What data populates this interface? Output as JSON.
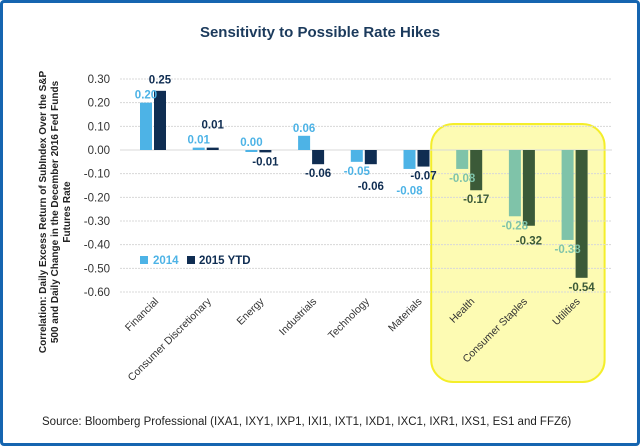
{
  "chart_data": {
    "type": "bar",
    "title": "Sensitivity to Possible Rate Hikes",
    "ylabel": [
      "Correlation: Daily Excess Return of SubIndex Over the S&P",
      "500 and Daily Change in the December 2016 Fed Funds",
      "Futures Rate"
    ],
    "ylim": [
      -0.6,
      0.3
    ],
    "yticks": [
      "0.30",
      "0.20",
      "0.10",
      "0.00",
      "-0.10",
      "-0.20",
      "-0.30",
      "-0.40",
      "-0.50",
      "-0.60"
    ],
    "grid": true,
    "legend_placement": "left-middle",
    "categories": [
      "Financial",
      "Consumer Discretionary",
      "Energy",
      "Industrials",
      "Technology",
      "Materials",
      "Health",
      "Consumer Staples",
      "Utilities"
    ],
    "series": [
      {
        "name": "2014",
        "values": [
          0.2,
          0.01,
          0.0,
          0.06,
          -0.05,
          -0.08,
          -0.08,
          -0.28,
          -0.38
        ],
        "labels": [
          "0.20",
          "0.01",
          "0.00",
          "0.06",
          "-0.05",
          "-0.08",
          "-0.08",
          "-0.28",
          "-0.38"
        ],
        "color": "#4db3e6",
        "highlight_color": "#7fc3a9"
      },
      {
        "name": "2015 YTD",
        "values": [
          0.25,
          0.01,
          -0.01,
          -0.06,
          -0.06,
          -0.07,
          -0.17,
          -0.32,
          -0.54
        ],
        "labels": [
          "0.25",
          "0.01",
          "-0.01",
          "-0.06",
          "-0.06",
          "-0.07",
          "-0.17",
          "-0.32",
          "-0.54"
        ],
        "color": "#0f2d52",
        "highlight_color": "#3b5a38"
      }
    ],
    "highlighted_categories": [
      "Health",
      "Consumer Staples",
      "Utilities"
    ],
    "highlight_fill": "#fdfbb3",
    "highlight_stroke": "#f4ee2a"
  },
  "source": "Source: Bloomberg Professional (IXA1, IXY1, IXP1, IXI1, IXT1, IXD1, IXC1, IXR1, IXS1, ES1 and FFZ6)"
}
